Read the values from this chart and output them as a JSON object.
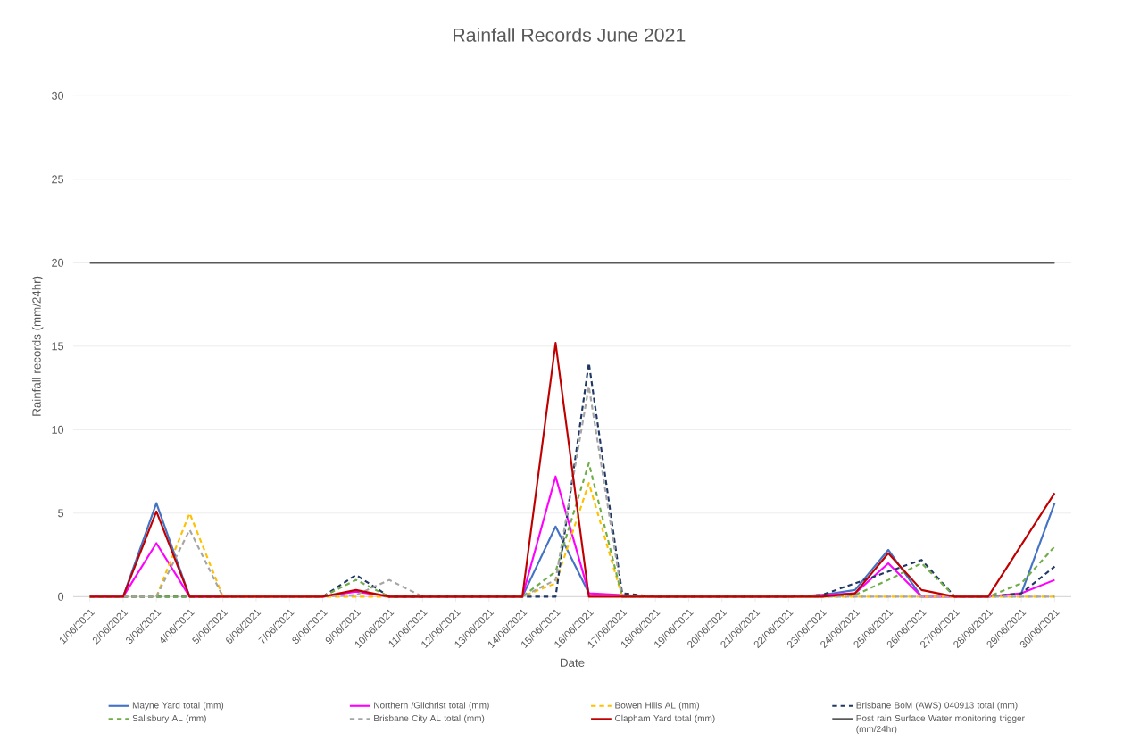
{
  "chart_data": {
    "type": "line",
    "title": "Rainfall Records June 2021",
    "xlabel": "Date",
    "ylabel": "Rainfall records  (mm/24hr)",
    "categories": [
      "1/06/2021",
      "2/06/2021",
      "3/06/2021",
      "4/06/2021",
      "5/06/2021",
      "6/06/2021",
      "7/06/2021",
      "8/06/2021",
      "9/06/2021",
      "10/06/2021",
      "11/06/2021",
      "12/06/2021",
      "13/06/2021",
      "14/06/2021",
      "15/06/2021",
      "16/06/2021",
      "17/06/2021",
      "18/06/2021",
      "19/06/2021",
      "20/06/2021",
      "21/06/2021",
      "22/06/2021",
      "23/06/2021",
      "24/06/2021",
      "25/06/2021",
      "26/06/2021",
      "27/06/2021",
      "28/06/2021",
      "29/06/2021",
      "30/06/2021"
    ],
    "series": [
      {
        "name": "Mayne Yard total (mm)",
        "color": "#4472c4",
        "line_style": "solid",
        "values": [
          null,
          0,
          5.6,
          0,
          null,
          null,
          null,
          null,
          null,
          null,
          null,
          null,
          null,
          0,
          4.2,
          0.2,
          null,
          null,
          null,
          null,
          null,
          0,
          0.1,
          0.4,
          2.8,
          0,
          null,
          null,
          0.2,
          5.6
        ]
      },
      {
        "name": "Northern  /Gilchrist total (mm)",
        "color": "#ff00ff",
        "line_style": "solid",
        "values": [
          0,
          0,
          3.2,
          0,
          0,
          0,
          0,
          0,
          0.3,
          0,
          0,
          0,
          0,
          0,
          7.2,
          0.2,
          0.1,
          0,
          0,
          0,
          0,
          0,
          0.1,
          0.2,
          2.0,
          0,
          0,
          0,
          0.2,
          1.0
        ]
      },
      {
        "name": "Bowen Hills AL (mm)",
        "color": "#ffc000",
        "line_style": "dashed",
        "values": [
          0,
          0,
          0,
          5.0,
          0,
          0,
          0,
          0,
          0,
          0,
          0,
          0,
          0,
          0,
          0.8,
          6.8,
          0,
          0,
          0,
          0,
          0,
          0,
          0,
          0,
          0,
          0,
          0,
          0,
          0,
          0
        ]
      },
      {
        "name": "Brisbane BoM (AWS) 040913 total (mm)",
        "color": "#203864",
        "line_style": "dashed",
        "values": [
          0,
          0,
          0,
          0,
          0,
          0,
          0,
          0,
          1.3,
          0,
          0,
          0,
          0,
          0,
          0,
          14.0,
          0.2,
          0,
          0,
          0,
          0,
          0,
          0.1,
          0.8,
          1.5,
          2.2,
          0,
          0,
          0.2,
          1.8
        ]
      },
      {
        "name": "Salisbury AL (mm)",
        "color": "#70ad47",
        "line_style": "dashed",
        "values": [
          0,
          0,
          0,
          0,
          0,
          0,
          0,
          0,
          1.0,
          0,
          0,
          0,
          0,
          0,
          1.5,
          8.0,
          0,
          0,
          0,
          0,
          0,
          0,
          0,
          0.1,
          1.0,
          2.0,
          0,
          0,
          0.8,
          3.0
        ]
      },
      {
        "name": "Brisbane City AL total (mm)",
        "color": "#a5a5a5",
        "line_style": "dashed",
        "values": [
          0,
          0,
          0,
          4.0,
          0,
          0,
          0,
          0,
          0.1,
          1.0,
          0,
          0,
          0,
          0,
          1.0,
          12.6,
          0,
          0,
          0,
          0,
          0,
          0,
          0,
          0,
          0,
          0,
          0,
          0,
          0,
          0
        ]
      },
      {
        "name": "Clapham Yard total (mm)",
        "color": "#c00000",
        "line_style": "solid",
        "values": [
          0,
          0,
          5.1,
          0,
          0,
          0,
          0,
          0,
          0.4,
          0,
          0,
          0,
          0,
          0,
          15.2,
          0,
          0,
          0,
          0,
          0,
          0,
          0,
          0,
          0.2,
          2.6,
          0.4,
          0,
          0,
          3.1,
          6.2
        ]
      },
      {
        "name": "Post rain Surface Water monitoring trigger (mm/24hr)",
        "color": "#595959",
        "line_style": "solid",
        "values": [
          20,
          20,
          20,
          20,
          20,
          20,
          20,
          20,
          20,
          20,
          20,
          20,
          20,
          20,
          20,
          20,
          20,
          20,
          20,
          20,
          20,
          20,
          20,
          20,
          20,
          20,
          20,
          20,
          20,
          20
        ]
      }
    ],
    "ylim": [
      0,
      30
    ],
    "yticks": [
      0,
      5,
      10,
      15,
      20,
      25,
      30
    ],
    "grid": "y",
    "legend": "bottom",
    "marker": "none"
  }
}
